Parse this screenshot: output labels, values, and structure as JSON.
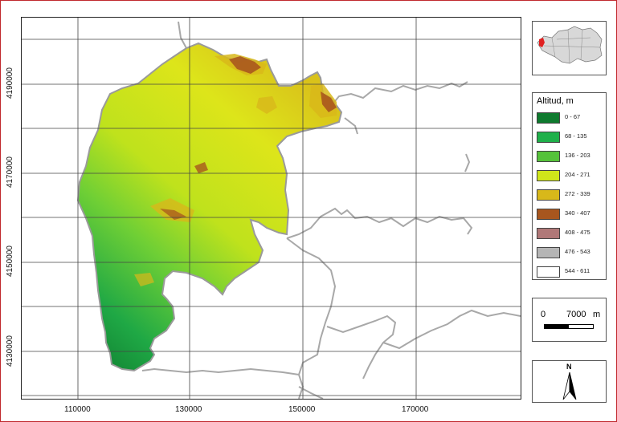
{
  "map": {
    "x_ticks": [
      "110000",
      "130000",
      "150000",
      "170000"
    ],
    "y_ticks": [
      "4190000",
      "4170000",
      "4150000",
      "4130000"
    ]
  },
  "legend": {
    "title": "Altitud, m",
    "classes": [
      {
        "label": "0 - 67",
        "color": "#0e7a2e"
      },
      {
        "label": "68 - 135",
        "color": "#1fb04a"
      },
      {
        "label": "136 - 203",
        "color": "#55c23a"
      },
      {
        "label": "204 - 271",
        "color": "#cfe61a"
      },
      {
        "label": "272 - 339",
        "color": "#d8b81a"
      },
      {
        "label": "340 - 407",
        "color": "#a8561e"
      },
      {
        "label": "408 - 475",
        "color": "#b07878"
      },
      {
        "label": "476 - 543",
        "color": "#b5b5b5"
      },
      {
        "label": "544 - 611",
        "color": "#ffffff"
      }
    ]
  },
  "scale": {
    "zero": "0",
    "distance": "7000",
    "unit": "m"
  },
  "north": {
    "label": "N"
  },
  "colors": {
    "frame": "#c0282d",
    "grid": "#444444",
    "boundary": "#a8a8a8",
    "highlight": "#e02020",
    "inset_fill": "#d8d8d8"
  }
}
